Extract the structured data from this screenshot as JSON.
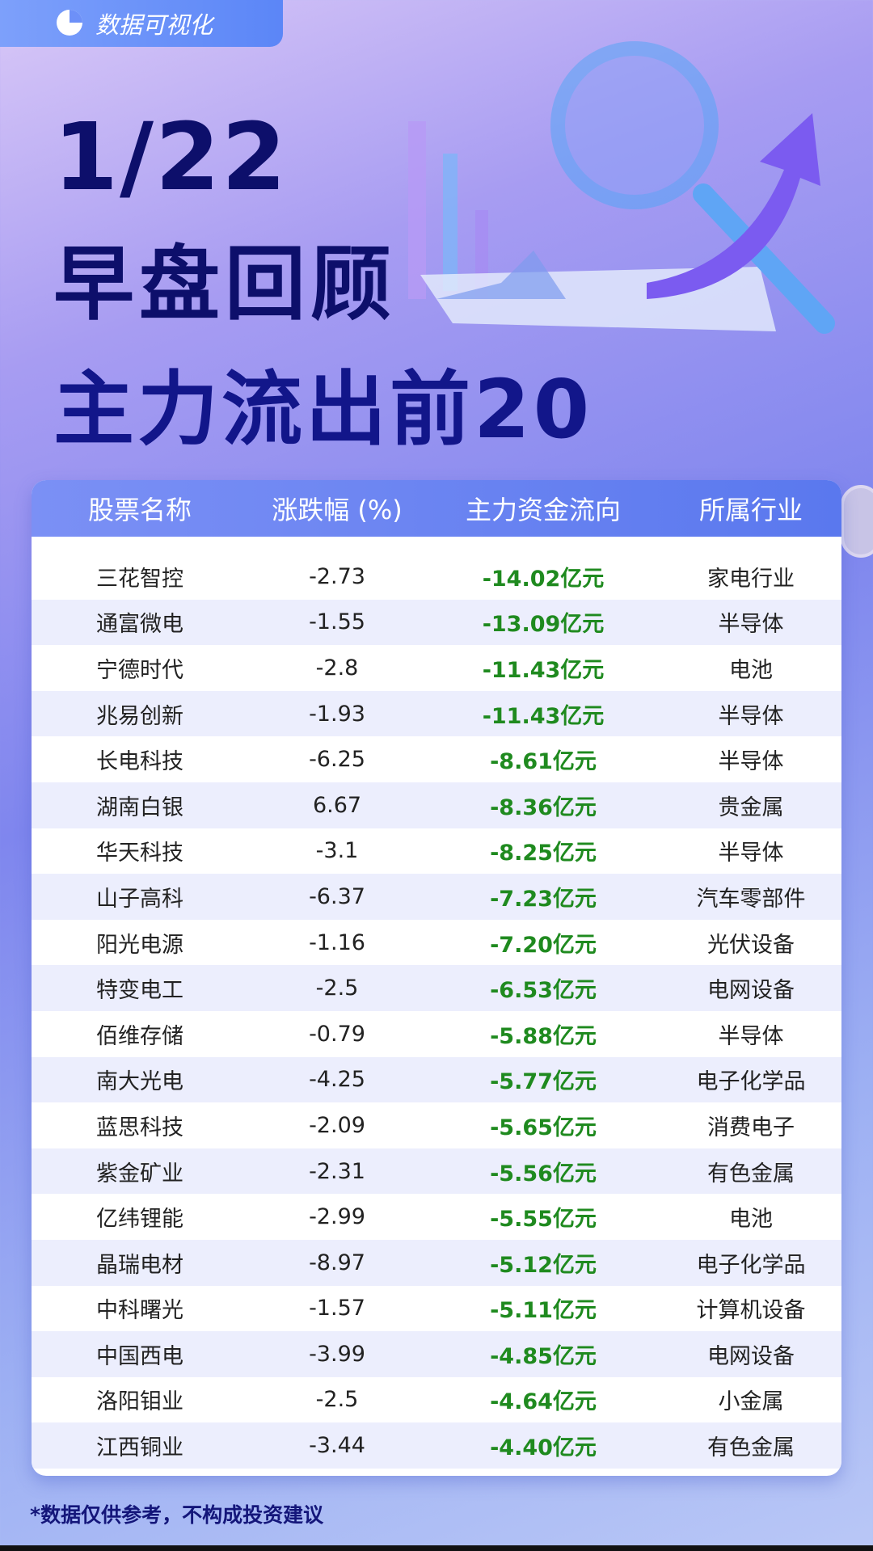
{
  "brand": {
    "label": "数据可视化",
    "icon": "pie-chart-icon"
  },
  "title": {
    "date": "1/22",
    "line2": "早盘回顾",
    "line3": "主力流出前20"
  },
  "table": {
    "headers": [
      "股票名称",
      "涨跌幅 (%)",
      "主力资金流向",
      "所属行业"
    ],
    "rows": [
      [
        "三花智控",
        "-2.73",
        "-14.02亿元",
        "家电行业"
      ],
      [
        "通富微电",
        "-1.55",
        "-13.09亿元",
        "半导体"
      ],
      [
        "宁德时代",
        "-2.8",
        "-11.43亿元",
        "电池"
      ],
      [
        "兆易创新",
        "-1.93",
        "-11.43亿元",
        "半导体"
      ],
      [
        "长电科技",
        "-6.25",
        "-8.61亿元",
        "半导体"
      ],
      [
        "湖南白银",
        "6.67",
        "-8.36亿元",
        "贵金属"
      ],
      [
        "华天科技",
        "-3.1",
        "-8.25亿元",
        "半导体"
      ],
      [
        "山子高科",
        "-6.37",
        "-7.23亿元",
        "汽车零部件"
      ],
      [
        "阳光电源",
        "-1.16",
        "-7.20亿元",
        "光伏设备"
      ],
      [
        "特变电工",
        "-2.5",
        "-6.53亿元",
        "电网设备"
      ],
      [
        "佰维存储",
        "-0.79",
        "-5.88亿元",
        "半导体"
      ],
      [
        "南大光电",
        "-4.25",
        "-5.77亿元",
        "电子化学品"
      ],
      [
        "蓝思科技",
        "-2.09",
        "-5.65亿元",
        "消费电子"
      ],
      [
        "紫金矿业",
        "-2.31",
        "-5.56亿元",
        "有色金属"
      ],
      [
        "亿纬锂能",
        "-2.99",
        "-5.55亿元",
        "电池"
      ],
      [
        "晶瑞电材",
        "-8.97",
        "-5.12亿元",
        "电子化学品"
      ],
      [
        "中科曙光",
        "-1.57",
        "-5.11亿元",
        "计算机设备"
      ],
      [
        "中国西电",
        "-3.99",
        "-4.85亿元",
        "电网设备"
      ],
      [
        "洛阳钼业",
        "-2.5",
        "-4.64亿元",
        "小金属"
      ],
      [
        "江西铜业",
        "-3.44",
        "-4.40亿元",
        "有色金属"
      ]
    ]
  },
  "footer": {
    "disclaimer": "*数据仅供参考，不构成投资建议"
  },
  "colors": {
    "title": "#0d0f6b",
    "outflow": "#1f8a1f",
    "header": "#6a84f2"
  }
}
